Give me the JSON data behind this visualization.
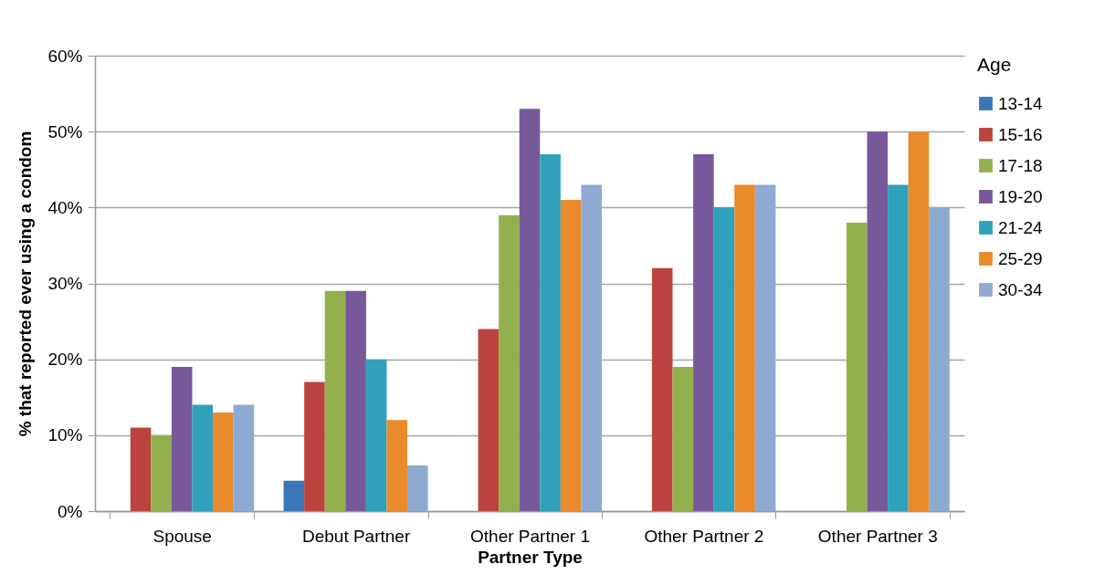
{
  "chart_data": {
    "type": "bar",
    "xlabel": "Partner Type",
    "ylabel": "% that  reported ever using a condom",
    "legend_title": "Age",
    "categories": [
      "Spouse",
      "Debut Partner",
      "Other Partner 1",
      "Other Partner 2",
      "Other Partner 3"
    ],
    "series": [
      {
        "name": "13-14",
        "color": "#3b76b6",
        "values": [
          null,
          4,
          null,
          null,
          null
        ]
      },
      {
        "name": "15-16",
        "color": "#bb443e",
        "values": [
          11,
          17,
          24,
          32,
          null
        ]
      },
      {
        "name": "17-18",
        "color": "#93b04f",
        "values": [
          10,
          29,
          39,
          19,
          38
        ]
      },
      {
        "name": "19-20",
        "color": "#77599a",
        "values": [
          19,
          29,
          53,
          47,
          50
        ]
      },
      {
        "name": "21-24",
        "color": "#30a1bb",
        "values": [
          14,
          20,
          47,
          40,
          43
        ]
      },
      {
        "name": "25-29",
        "color": "#e98a2b",
        "values": [
          13,
          12,
          41,
          43,
          50
        ]
      },
      {
        "name": "30-34",
        "color": "#8eaad0",
        "values": [
          14,
          6,
          43,
          43,
          40
        ]
      }
    ],
    "ylim": [
      0,
      60
    ],
    "yticks": [
      {
        "value": 0,
        "label": "0%"
      },
      {
        "value": 10,
        "label": "10%"
      },
      {
        "value": 20,
        "label": "20%"
      },
      {
        "value": 30,
        "label": "30%"
      },
      {
        "value": 40,
        "label": "40%"
      },
      {
        "value": 50,
        "label": "50%"
      },
      {
        "value": 60,
        "label": "60%"
      }
    ],
    "grid": "y",
    "legend": "top right"
  }
}
